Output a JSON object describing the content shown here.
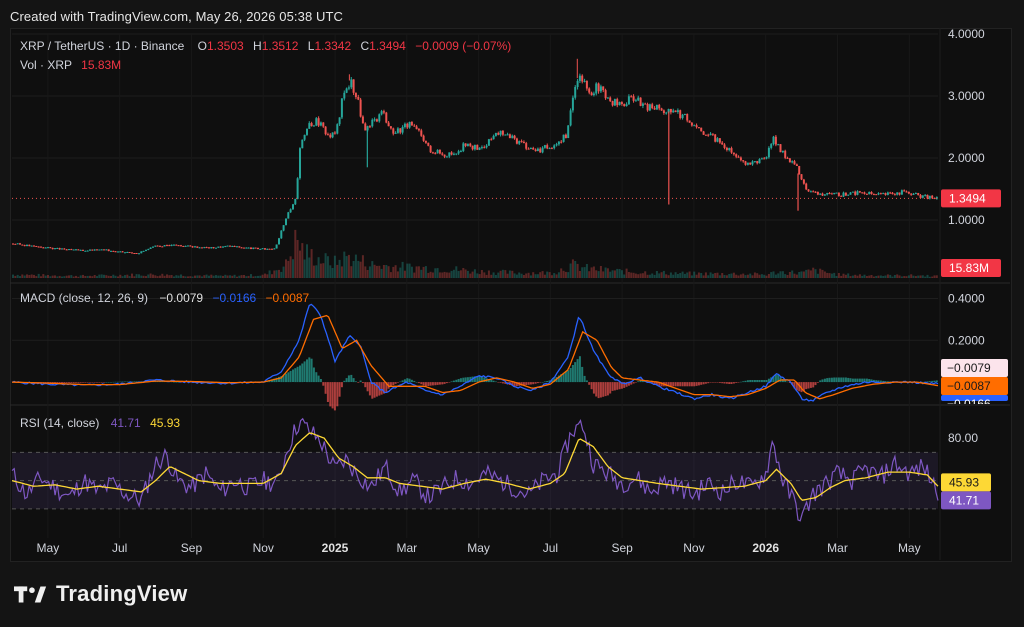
{
  "header": {
    "created_text": "Created with TradingView.com, May 26, 2026 05:38 UTC"
  },
  "brand": {
    "logo_icon": "tradingview-logo-icon",
    "logo_text": "TradingView"
  },
  "colors": {
    "up": "#26a69a",
    "down": "#ef5350",
    "price_label_bg": "#f23645",
    "macd_line": "#2962ff",
    "signal_line": "#ff6d00",
    "rsi_line": "#7e57c2",
    "rsi_ma_line": "#fdd835",
    "text": "#d1d4dc",
    "grid": "#1e1e1e"
  },
  "chart_data": {
    "type": "line",
    "symbol_line": {
      "symbol": "XRP / TetherUS · 1D · Binance",
      "o_label": "O",
      "o_value": "1.3503",
      "h_label": "H",
      "h_value": "1.3512",
      "l_label": "L",
      "l_value": "1.3342",
      "c_label": "C",
      "c_value": "1.3494",
      "change": "−0.0009 (−0.07%)"
    },
    "vol_line": {
      "label": "Vol · XRP",
      "value": "15.83M"
    },
    "price_axis": {
      "ticks": [
        "4.0000",
        "3.0000",
        "2.0000",
        "1.0000"
      ],
      "tick_values": [
        4.0,
        3.0,
        2.0,
        1.0
      ],
      "range": [
        0.0,
        4.0
      ],
      "last_price_label": "1.3494",
      "last_price": 1.3494,
      "volume_label": "15.83M"
    },
    "x_axis": {
      "labels": [
        "May",
        "Jul",
        "Sep",
        "Nov",
        "2025",
        "Mar",
        "May",
        "Jul",
        "Sep",
        "Nov",
        "2026",
        "Mar",
        "May"
      ],
      "label_months": [
        4,
        6,
        8,
        10,
        12,
        14,
        16,
        18,
        20,
        22,
        24,
        26,
        28
      ],
      "range_months": [
        3.0,
        28.8
      ],
      "origin": "2024-01"
    },
    "price_series": {
      "name": "XRP / TetherUS",
      "points": [
        [
          3.0,
          0.62
        ],
        [
          3.5,
          0.58
        ],
        [
          4.0,
          0.55
        ],
        [
          4.5,
          0.52
        ],
        [
          5.0,
          0.51
        ],
        [
          5.5,
          0.52
        ],
        [
          6.0,
          0.49
        ],
        [
          6.5,
          0.47
        ],
        [
          7.0,
          0.58
        ],
        [
          7.5,
          0.6
        ],
        [
          8.0,
          0.57
        ],
        [
          8.5,
          0.55
        ],
        [
          9.0,
          0.58
        ],
        [
          9.5,
          0.55
        ],
        [
          10.0,
          0.53
        ],
        [
          10.3,
          0.55
        ],
        [
          10.5,
          0.85
        ],
        [
          10.7,
          1.15
        ],
        [
          10.9,
          1.4
        ],
        [
          11.0,
          2.2
        ],
        [
          11.2,
          2.55
        ],
        [
          11.5,
          2.6
        ],
        [
          11.8,
          2.35
        ],
        [
          12.0,
          2.4
        ],
        [
          12.2,
          3.0
        ],
        [
          12.4,
          3.25
        ],
        [
          12.6,
          2.95
        ],
        [
          12.8,
          2.4
        ],
        [
          13.0,
          2.55
        ],
        [
          13.3,
          2.75
        ],
        [
          13.6,
          2.4
        ],
        [
          14.0,
          2.55
        ],
        [
          14.3,
          2.4
        ],
        [
          14.6,
          2.15
        ],
        [
          15.0,
          2.05
        ],
        [
          15.3,
          2.1
        ],
        [
          15.6,
          2.2
        ],
        [
          16.0,
          2.15
        ],
        [
          16.3,
          2.3
        ],
        [
          16.6,
          2.4
        ],
        [
          17.0,
          2.3
        ],
        [
          17.3,
          2.2
        ],
        [
          17.6,
          2.1
        ],
        [
          18.0,
          2.2
        ],
        [
          18.4,
          2.35
        ],
        [
          18.6,
          2.95
        ],
        [
          18.8,
          3.4
        ],
        [
          19.0,
          3.05
        ],
        [
          19.3,
          3.15
        ],
        [
          19.6,
          2.9
        ],
        [
          20.0,
          2.85
        ],
        [
          20.3,
          3.0
        ],
        [
          20.6,
          2.8
        ],
        [
          21.0,
          2.85
        ],
        [
          21.2,
          2.7
        ],
        [
          21.4,
          2.8
        ],
        [
          21.6,
          2.7
        ],
        [
          22.0,
          2.55
        ],
        [
          22.3,
          2.4
        ],
        [
          22.6,
          2.3
        ],
        [
          23.0,
          2.1
        ],
        [
          23.3,
          1.95
        ],
        [
          23.6,
          1.9
        ],
        [
          24.0,
          2.05
        ],
        [
          24.2,
          2.3
        ],
        [
          24.4,
          2.1
        ],
        [
          24.8,
          1.9
        ],
        [
          25.0,
          1.6
        ],
        [
          25.2,
          1.45
        ],
        [
          25.5,
          1.42
        ],
        [
          25.8,
          1.4
        ],
        [
          26.2,
          1.42
        ],
        [
          26.6,
          1.45
        ],
        [
          27.0,
          1.4
        ],
        [
          27.4,
          1.42
        ],
        [
          27.8,
          1.45
        ],
        [
          28.2,
          1.4
        ],
        [
          28.5,
          1.37
        ],
        [
          28.8,
          1.35
        ]
      ]
    },
    "volume_series": {
      "range": [
        0,
        140
      ],
      "points": [
        [
          3.0,
          8
        ],
        [
          4.0,
          6
        ],
        [
          5.0,
          5
        ],
        [
          6.0,
          7
        ],
        [
          7.0,
          8
        ],
        [
          8.0,
          6
        ],
        [
          9.0,
          5
        ],
        [
          10.0,
          7
        ],
        [
          10.6,
          30
        ],
        [
          10.9,
          90
        ],
        [
          11.1,
          60
        ],
        [
          11.5,
          45
        ],
        [
          12.0,
          35
        ],
        [
          12.3,
          50
        ],
        [
          12.7,
          40
        ],
        [
          13.0,
          30
        ],
        [
          14.0,
          25
        ],
        [
          15.0,
          22
        ],
        [
          16.0,
          15
        ],
        [
          17.0,
          12
        ],
        [
          18.0,
          12
        ],
        [
          18.6,
          30
        ],
        [
          19.0,
          22
        ],
        [
          20.0,
          15
        ],
        [
          21.0,
          12
        ],
        [
          22.0,
          10
        ],
        [
          23.0,
          10
        ],
        [
          24.0,
          8
        ],
        [
          24.3,
          14
        ],
        [
          25.0,
          12
        ],
        [
          25.3,
          18
        ],
        [
          26.0,
          8
        ],
        [
          27.0,
          6
        ],
        [
          28.0,
          6
        ],
        [
          28.8,
          5
        ]
      ]
    },
    "macd_panel": {
      "label": "MACD (close, 12, 26, 9)",
      "macd_value": "−0.0079",
      "signal_value": "−0.0166",
      "hist_value": "−0.0087",
      "axis_ticks": [
        "0.4000",
        "0.2000"
      ],
      "tick_values": [
        0.4,
        0.2
      ],
      "range": [
        -0.1,
        0.45
      ],
      "label_values": [
        -0.0079,
        -0.0087,
        -0.0166
      ],
      "right_labels": [
        "−0.0079",
        "−0.0087",
        "−0.0166"
      ],
      "macd": [
        [
          3.0,
          0.0
        ],
        [
          4.0,
          -0.01
        ],
        [
          5.0,
          -0.015
        ],
        [
          6.0,
          -0.01
        ],
        [
          7.0,
          0.01
        ],
        [
          8.0,
          0.0
        ],
        [
          9.0,
          -0.005
        ],
        [
          10.0,
          0.0
        ],
        [
          10.5,
          0.05
        ],
        [
          11.0,
          0.2
        ],
        [
          11.3,
          0.38
        ],
        [
          11.6,
          0.32
        ],
        [
          12.0,
          0.1
        ],
        [
          12.4,
          0.22
        ],
        [
          12.7,
          0.18
        ],
        [
          13.0,
          0.0
        ],
        [
          13.4,
          -0.05
        ],
        [
          14.0,
          0.0
        ],
        [
          14.5,
          -0.04
        ],
        [
          15.0,
          -0.06
        ],
        [
          15.5,
          -0.02
        ],
        [
          16.0,
          0.03
        ],
        [
          16.5,
          0.02
        ],
        [
          17.0,
          -0.02
        ],
        [
          17.5,
          -0.04
        ],
        [
          18.0,
          0.0
        ],
        [
          18.5,
          0.12
        ],
        [
          18.8,
          0.32
        ],
        [
          19.2,
          0.15
        ],
        [
          19.6,
          0.04
        ],
        [
          20.0,
          -0.01
        ],
        [
          20.5,
          0.02
        ],
        [
          21.0,
          -0.02
        ],
        [
          21.5,
          -0.05
        ],
        [
          22.0,
          -0.08
        ],
        [
          22.5,
          -0.06
        ],
        [
          23.0,
          -0.08
        ],
        [
          23.5,
          -0.05
        ],
        [
          24.0,
          -0.02
        ],
        [
          24.3,
          0.04
        ],
        [
          24.7,
          0.0
        ],
        [
          25.0,
          -0.08
        ],
        [
          25.3,
          -0.09
        ],
        [
          25.7,
          -0.05
        ],
        [
          26.2,
          -0.02
        ],
        [
          26.8,
          0.0
        ],
        [
          27.5,
          0.0
        ],
        [
          28.0,
          0.0
        ],
        [
          28.8,
          -0.008
        ]
      ],
      "signal": [
        [
          3.0,
          0.0
        ],
        [
          4.0,
          -0.005
        ],
        [
          5.0,
          -0.012
        ],
        [
          6.0,
          -0.012
        ],
        [
          7.0,
          0.005
        ],
        [
          8.0,
          0.003
        ],
        [
          9.0,
          -0.003
        ],
        [
          10.0,
          0.0
        ],
        [
          10.5,
          0.02
        ],
        [
          11.0,
          0.12
        ],
        [
          11.4,
          0.3
        ],
        [
          11.8,
          0.32
        ],
        [
          12.2,
          0.16
        ],
        [
          12.6,
          0.2
        ],
        [
          13.0,
          0.08
        ],
        [
          13.5,
          -0.02
        ],
        [
          14.0,
          -0.02
        ],
        [
          14.5,
          -0.02
        ],
        [
          15.0,
          -0.05
        ],
        [
          15.5,
          -0.04
        ],
        [
          16.0,
          0.0
        ],
        [
          16.5,
          0.02
        ],
        [
          17.0,
          0.0
        ],
        [
          17.5,
          -0.03
        ],
        [
          18.0,
          -0.01
        ],
        [
          18.5,
          0.06
        ],
        [
          18.9,
          0.24
        ],
        [
          19.3,
          0.2
        ],
        [
          19.7,
          0.07
        ],
        [
          20.0,
          0.02
        ],
        [
          20.5,
          0.01
        ],
        [
          21.0,
          0.0
        ],
        [
          21.5,
          -0.03
        ],
        [
          22.0,
          -0.06
        ],
        [
          22.5,
          -0.06
        ],
        [
          23.0,
          -0.07
        ],
        [
          23.5,
          -0.06
        ],
        [
          24.0,
          -0.03
        ],
        [
          24.4,
          0.01
        ],
        [
          24.8,
          0.01
        ],
        [
          25.1,
          -0.05
        ],
        [
          25.5,
          -0.08
        ],
        [
          25.9,
          -0.06
        ],
        [
          26.4,
          -0.03
        ],
        [
          27.0,
          -0.01
        ],
        [
          27.6,
          0.0
        ],
        [
          28.2,
          0.0
        ],
        [
          28.8,
          -0.017
        ]
      ]
    },
    "rsi_panel": {
      "label": "RSI (14, close)",
      "rsi_value": "41.71",
      "ma_value": "45.93",
      "axis_ticks": [
        "80.00"
      ],
      "tick_values": [
        80
      ],
      "range": [
        15,
        100
      ],
      "band_upper": 70,
      "band_lower": 30,
      "label_values": [
        45.93,
        41.71
      ],
      "right_labels": [
        "45.93",
        "41.71"
      ],
      "rsi": [
        [
          3.0,
          55
        ],
        [
          3.4,
          40
        ],
        [
          3.8,
          52
        ],
        [
          4.2,
          45
        ],
        [
          4.6,
          38
        ],
        [
          5.0,
          50
        ],
        [
          5.4,
          42
        ],
        [
          5.8,
          48
        ],
        [
          6.2,
          40
        ],
        [
          6.6,
          36
        ],
        [
          7.0,
          62
        ],
        [
          7.3,
          68
        ],
        [
          7.6,
          50
        ],
        [
          8.0,
          45
        ],
        [
          8.4,
          55
        ],
        [
          8.8,
          42
        ],
        [
          9.2,
          50
        ],
        [
          9.6,
          45
        ],
        [
          10.0,
          50
        ],
        [
          10.4,
          48
        ],
        [
          10.7,
          75
        ],
        [
          11.0,
          92
        ],
        [
          11.3,
          85
        ],
        [
          11.6,
          78
        ],
        [
          12.0,
          58
        ],
        [
          12.3,
          65
        ],
        [
          12.6,
          55
        ],
        [
          13.0,
          45
        ],
        [
          13.4,
          60
        ],
        [
          13.8,
          42
        ],
        [
          14.2,
          50
        ],
        [
          14.6,
          38
        ],
        [
          15.0,
          45
        ],
        [
          15.4,
          52
        ],
        [
          15.8,
          48
        ],
        [
          16.2,
          55
        ],
        [
          16.6,
          50
        ],
        [
          17.0,
          45
        ],
        [
          17.4,
          40
        ],
        [
          17.8,
          50
        ],
        [
          18.2,
          55
        ],
        [
          18.6,
          85
        ],
        [
          18.9,
          90
        ],
        [
          19.2,
          62
        ],
        [
          19.6,
          55
        ],
        [
          20.0,
          48
        ],
        [
          20.4,
          52
        ],
        [
          20.8,
          42
        ],
        [
          21.2,
          50
        ],
        [
          21.6,
          45
        ],
        [
          22.0,
          40
        ],
        [
          22.4,
          48
        ],
        [
          22.8,
          42
        ],
        [
          23.2,
          50
        ],
        [
          23.6,
          45
        ],
        [
          24.0,
          55
        ],
        [
          24.2,
          78
        ],
        [
          24.5,
          48
        ],
        [
          24.8,
          35
        ],
        [
          25.0,
          22
        ],
        [
          25.3,
          40
        ],
        [
          25.7,
          48
        ],
        [
          26.0,
          55
        ],
        [
          26.4,
          50
        ],
        [
          26.8,
          58
        ],
        [
          27.2,
          52
        ],
        [
          27.6,
          62
        ],
        [
          28.0,
          55
        ],
        [
          28.4,
          60
        ],
        [
          28.8,
          42
        ]
      ],
      "rsi_ma": [
        [
          3.0,
          50
        ],
        [
          3.6,
          46
        ],
        [
          4.2,
          47
        ],
        [
          4.8,
          44
        ],
        [
          5.4,
          46
        ],
        [
          6.0,
          44
        ],
        [
          6.6,
          42
        ],
        [
          7.0,
          50
        ],
        [
          7.4,
          60
        ],
        [
          7.8,
          55
        ],
        [
          8.2,
          50
        ],
        [
          8.8,
          48
        ],
        [
          9.4,
          48
        ],
        [
          10.0,
          48
        ],
        [
          10.5,
          55
        ],
        [
          10.9,
          75
        ],
        [
          11.3,
          84
        ],
        [
          11.7,
          80
        ],
        [
          12.1,
          66
        ],
        [
          12.5,
          60
        ],
        [
          12.9,
          52
        ],
        [
          13.4,
          52
        ],
        [
          13.8,
          48
        ],
        [
          14.4,
          46
        ],
        [
          15.0,
          44
        ],
        [
          15.6,
          48
        ],
        [
          16.2,
          51
        ],
        [
          16.8,
          48
        ],
        [
          17.4,
          44
        ],
        [
          18.0,
          48
        ],
        [
          18.4,
          55
        ],
        [
          18.8,
          80
        ],
        [
          19.2,
          74
        ],
        [
          19.6,
          60
        ],
        [
          20.0,
          52
        ],
        [
          20.5,
          50
        ],
        [
          21.0,
          48
        ],
        [
          21.6,
          46
        ],
        [
          22.2,
          44
        ],
        [
          22.8,
          45
        ],
        [
          23.4,
          46
        ],
        [
          24.0,
          50
        ],
        [
          24.3,
          58
        ],
        [
          24.7,
          48
        ],
        [
          25.0,
          36
        ],
        [
          25.4,
          38
        ],
        [
          25.8,
          45
        ],
        [
          26.2,
          50
        ],
        [
          26.8,
          52
        ],
        [
          27.4,
          56
        ],
        [
          28.0,
          56
        ],
        [
          28.5,
          54
        ],
        [
          28.8,
          46
        ]
      ]
    }
  }
}
